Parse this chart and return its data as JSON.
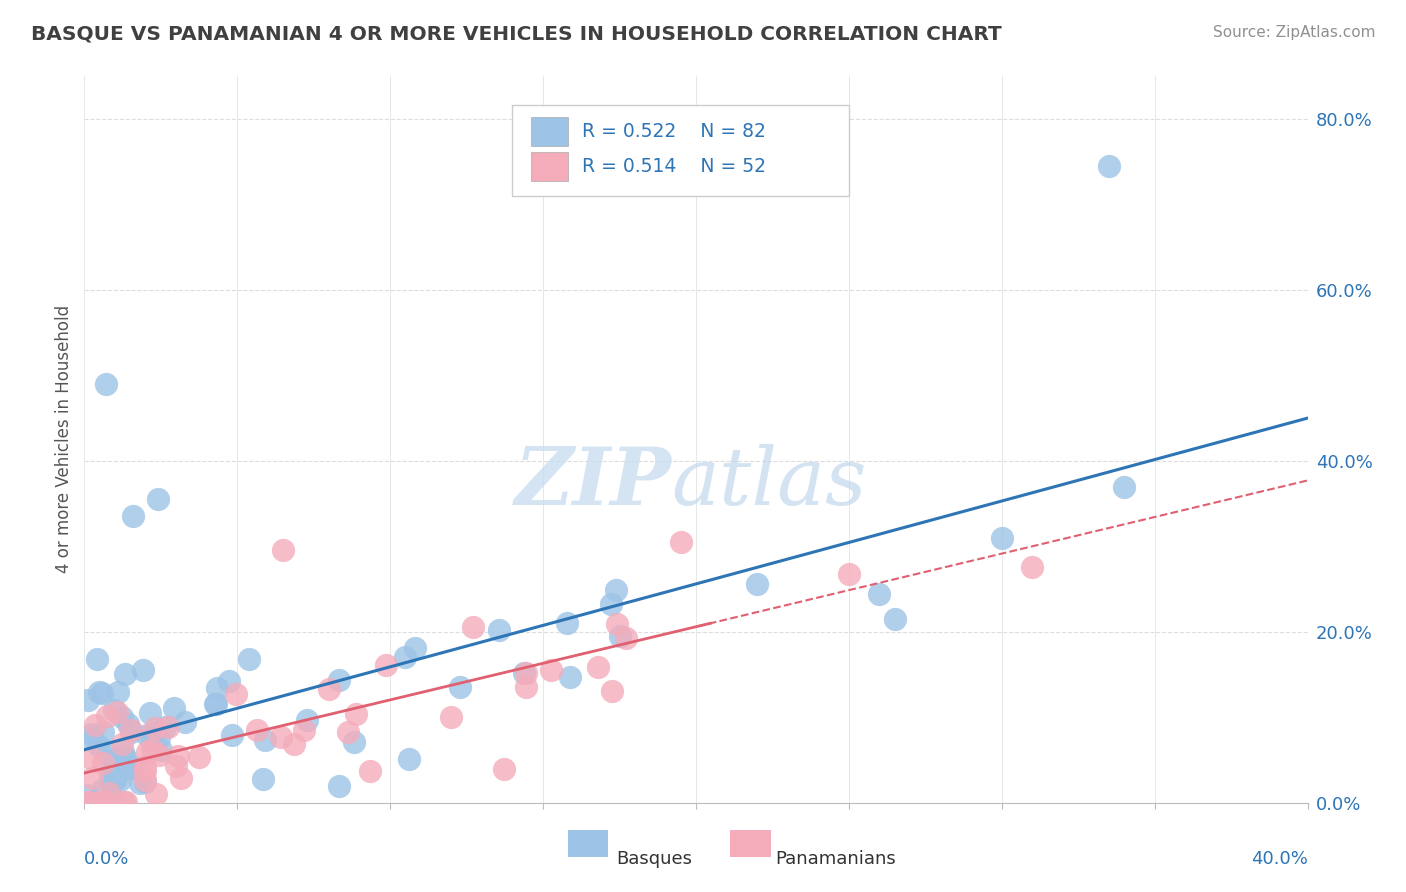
{
  "title": "BASQUE VS PANAMANIAN 4 OR MORE VEHICLES IN HOUSEHOLD CORRELATION CHART",
  "source": "Source: ZipAtlas.com",
  "ylabel": "4 or more Vehicles in Household",
  "basque_color": "#9DC3E6",
  "panamanian_color": "#F4ACBB",
  "basque_line_color": "#2E75B6",
  "panamanian_line_color": "#E06070",
  "background_color": "#FFFFFF",
  "xlim": [
    0.0,
    0.4
  ],
  "ylim": [
    0.0,
    0.85
  ],
  "watermark_color": "#D6E8F7",
  "grid_color": "#DDDDDD",
  "legend_text_color": "#2E75B6",
  "axis_label_color": "#2E75B6",
  "title_color": "#404040",
  "source_color": "#909090"
}
